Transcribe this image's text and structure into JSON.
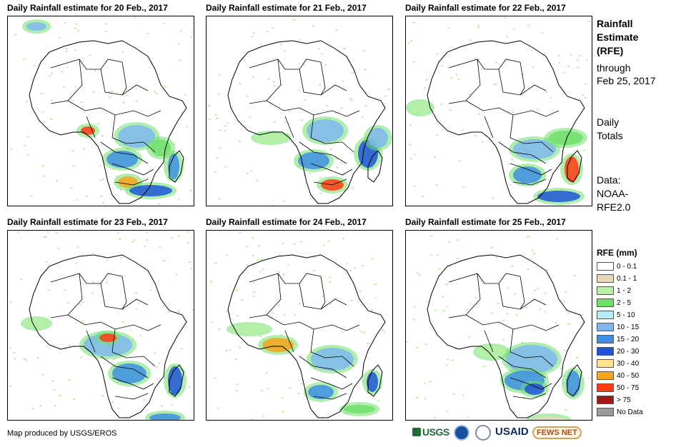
{
  "panels": [
    {
      "title": "Daily Rainfall estimate for 20 Feb., 2017"
    },
    {
      "title": "Daily Rainfall estimate for 21 Feb., 2017"
    },
    {
      "title": "Daily Rainfall estimate for 22 Feb., 2017"
    },
    {
      "title": "Daily Rainfall estimate for 23 Feb., 2017"
    },
    {
      "title": "Daily Rainfall estimate for 24 Feb., 2017"
    },
    {
      "title": "Daily Rainfall estimate for 25 Feb., 2017"
    }
  ],
  "sidebar": {
    "title_line1": "Rainfall",
    "title_line2": "Estimate",
    "title_line3": "(RFE)",
    "through": "through",
    "date": "Feb 25, 2017",
    "daily1": "Daily",
    "daily2": "Totals",
    "data1": "Data:",
    "data2": "NOAA-",
    "data3": "RFE2.0"
  },
  "legend": {
    "title": "RFE (mm)",
    "items": [
      {
        "label": "0 - 0.1",
        "color": "#ffffff"
      },
      {
        "label": "0.1 - 1",
        "color": "#e8d8b8"
      },
      {
        "label": "1 - 2",
        "color": "#b7f0a6"
      },
      {
        "label": "2 - 5",
        "color": "#6ee06a"
      },
      {
        "label": "5 - 10",
        "color": "#b6ecf6"
      },
      {
        "label": "10 - 15",
        "color": "#7fb7ee"
      },
      {
        "label": "15 - 20",
        "color": "#3f8ee4"
      },
      {
        "label": "20 - 30",
        "color": "#1f55d8"
      },
      {
        "label": "30 - 40",
        "color": "#ffe38a"
      },
      {
        "label": "40 - 50",
        "color": "#f7a51b"
      },
      {
        "label": "50 - 75",
        "color": "#ff3b10"
      },
      {
        "label": "> 75",
        "color": "#9e1a1a"
      },
      {
        "label": "No Data",
        "color": "#9a9a9a"
      }
    ]
  },
  "credit": "Map produced by USGS/EROS",
  "logos": {
    "usgs": "USGS",
    "usaid": "USAID",
    "fews": "FEWS NET"
  }
}
